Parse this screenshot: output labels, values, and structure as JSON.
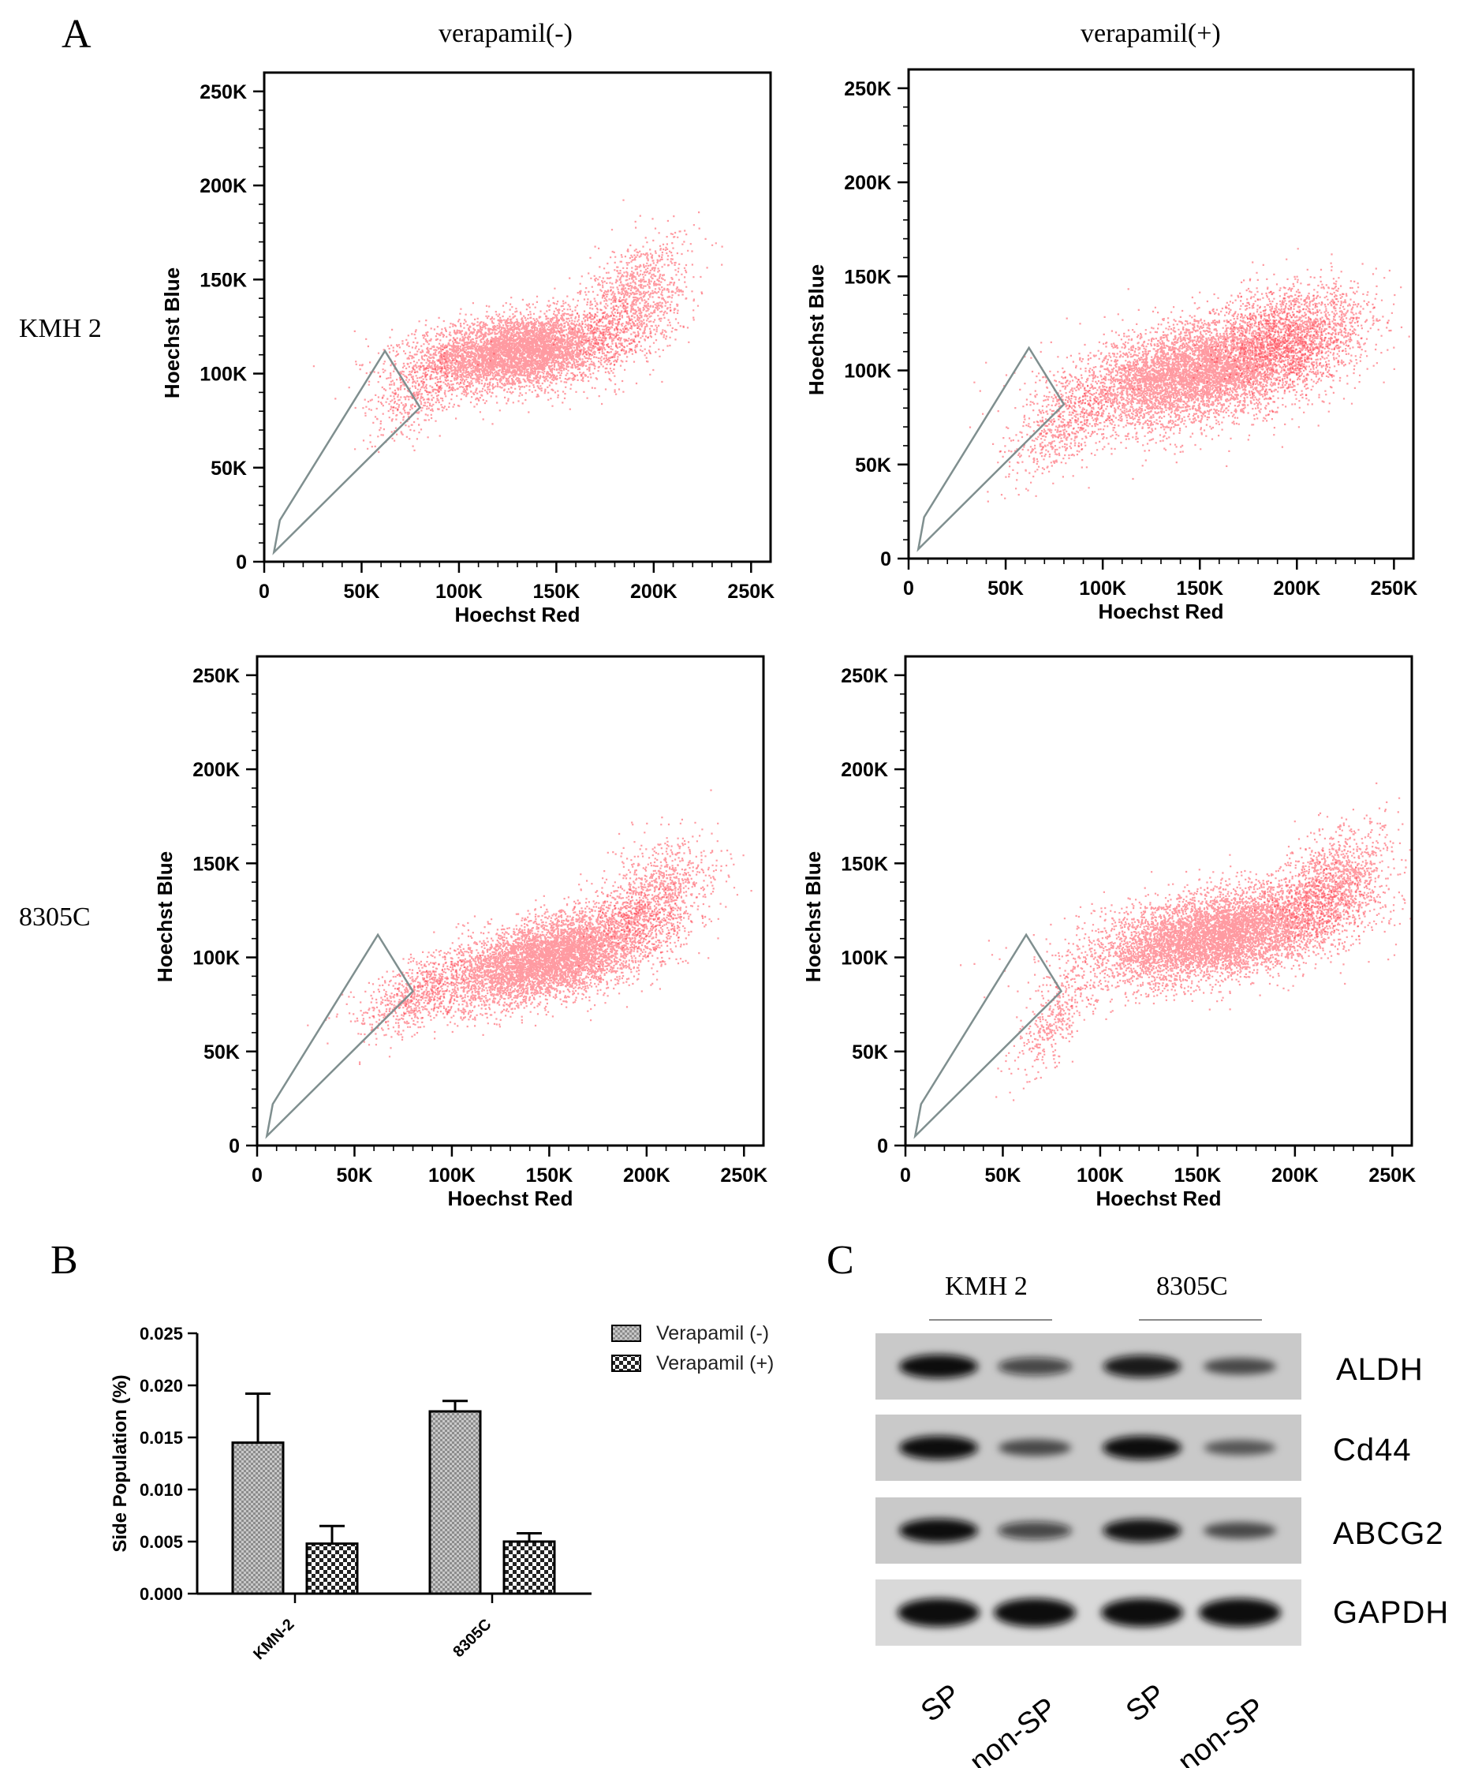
{
  "panels": {
    "A": "A",
    "B": "B",
    "C": "C"
  },
  "flow": {
    "column_headers": [
      "verapamil(-)",
      "verapamil(+)"
    ],
    "row_headers": [
      "KMH 2",
      "8305C"
    ],
    "colors": {
      "dots": "#ff1f2e",
      "gate": "#7f8f8f"
    },
    "chart_data": [
      {
        "type": "scatter",
        "row": "KMH 2",
        "column": "verapamil(-)",
        "xlabel": "Hoechst Red",
        "ylabel": "Hoechst Blue",
        "xlim": [
          0,
          260000
        ],
        "ylim": [
          0,
          260000
        ],
        "x_ticks": [
          "0",
          "50K",
          "100K",
          "150K",
          "200K",
          "250K"
        ],
        "y_ticks": [
          "0",
          "50K",
          "100K",
          "150K",
          "200K",
          "250K"
        ],
        "gate": [
          [
            5000,
            5000
          ],
          [
            8000,
            22000
          ],
          [
            62000,
            112000
          ],
          [
            80000,
            82000
          ]
        ],
        "clusters": [
          {
            "cx": 130000,
            "cy": 112000,
            "sx": 26000,
            "sy": 10000,
            "n": 5200,
            "rho": 0.3
          },
          {
            "cx": 190000,
            "cy": 140000,
            "sx": 14000,
            "sy": 16000,
            "n": 1100,
            "rho": 0.4
          },
          {
            "cx": 78000,
            "cy": 88000,
            "sx": 12000,
            "sy": 12000,
            "n": 380,
            "rho": 0.6
          }
        ]
      },
      {
        "type": "scatter",
        "row": "KMH 2",
        "column": "verapamil(+)",
        "xlabel": "Hoechst Red",
        "ylabel": "Hoechst Blue",
        "xlim": [
          0,
          260000
        ],
        "ylim": [
          0,
          260000
        ],
        "x_ticks": [
          "0",
          "50K",
          "100K",
          "150K",
          "200K",
          "250K"
        ],
        "y_ticks": [
          "0",
          "50K",
          "100K",
          "150K",
          "200K",
          "250K"
        ],
        "gate": [
          [
            5000,
            5000
          ],
          [
            8000,
            22000
          ],
          [
            62000,
            112000
          ],
          [
            80000,
            82000
          ]
        ],
        "clusters": [
          {
            "cx": 150000,
            "cy": 100000,
            "sx": 32000,
            "sy": 15000,
            "n": 6200,
            "rho": 0.45
          },
          {
            "cx": 200000,
            "cy": 120000,
            "sx": 18000,
            "sy": 14000,
            "n": 1500,
            "rho": 0.3
          },
          {
            "cx": 78000,
            "cy": 70000,
            "sx": 14000,
            "sy": 14000,
            "n": 500,
            "rho": 0.6
          }
        ]
      },
      {
        "type": "scatter",
        "row": "8305C",
        "column": "verapamil(-)",
        "xlabel": "Hoechst Red",
        "ylabel": "Hoechst Blue",
        "xlim": [
          0,
          260000
        ],
        "ylim": [
          0,
          260000
        ],
        "x_ticks": [
          "0",
          "50K",
          "100K",
          "150K",
          "200K",
          "250K"
        ],
        "y_ticks": [
          "0",
          "50K",
          "100K",
          "150K",
          "200K",
          "250K"
        ],
        "gate": [
          [
            5000,
            5000
          ],
          [
            8000,
            22000
          ],
          [
            62000,
            112000
          ],
          [
            80000,
            82000
          ]
        ],
        "clusters": [
          {
            "cx": 150000,
            "cy": 100000,
            "sx": 28000,
            "sy": 13000,
            "n": 5600,
            "rho": 0.55
          },
          {
            "cx": 205000,
            "cy": 135000,
            "sx": 14000,
            "sy": 14000,
            "n": 900,
            "rho": 0.4
          },
          {
            "cx": 80000,
            "cy": 80000,
            "sx": 14000,
            "sy": 11000,
            "n": 600,
            "rho": 0.6
          }
        ]
      },
      {
        "type": "scatter",
        "row": "8305C",
        "column": "verapamil(+)",
        "xlabel": "Hoechst Red",
        "ylabel": "Hoechst Blue",
        "xlim": [
          0,
          260000
        ],
        "ylim": [
          0,
          260000
        ],
        "x_ticks": [
          "0",
          "50K",
          "100K",
          "150K",
          "200K",
          "250K"
        ],
        "y_ticks": [
          "0",
          "50K",
          "100K",
          "150K",
          "200K",
          "250K"
        ],
        "gate": [
          [
            5000,
            5000
          ],
          [
            8000,
            22000
          ],
          [
            62000,
            112000
          ],
          [
            80000,
            82000
          ]
        ],
        "clusters": [
          {
            "cx": 160000,
            "cy": 112000,
            "sx": 32000,
            "sy": 13000,
            "n": 6000,
            "rho": 0.45
          },
          {
            "cx": 220000,
            "cy": 140000,
            "sx": 14000,
            "sy": 14000,
            "n": 1200,
            "rho": 0.3
          },
          {
            "cx": 75000,
            "cy": 65000,
            "sx": 10000,
            "sy": 14000,
            "n": 350,
            "rho": 0.7
          }
        ]
      }
    ]
  },
  "bar": {
    "chart_data": {
      "type": "bar",
      "categories": [
        "KMN-2",
        "8305C"
      ],
      "ylabel": "Side Population (%)",
      "ylim": [
        0,
        0.025
      ],
      "y_ticks": [
        "0.000",
        "0.005",
        "0.010",
        "0.015",
        "0.020",
        "0.025"
      ],
      "legend_position": "top-right",
      "series": [
        {
          "name": "Verapamil (-)",
          "values": [
            0.0145,
            0.0175
          ],
          "errors": [
            0.0047,
            0.001
          ]
        },
        {
          "name": "Verapamil (+)",
          "values": [
            0.0048,
            0.005
          ],
          "errors": [
            0.0017,
            0.0008
          ]
        }
      ]
    }
  },
  "blot": {
    "groups": [
      "KMH 2",
      "8305C"
    ],
    "proteins": [
      "ALDH",
      "Cd44",
      "ABCG2",
      "GAPDH"
    ],
    "lanes": [
      "SP",
      "non-SP",
      "SP",
      "non-SP"
    ],
    "band_intensity": [
      [
        1.0,
        0.55,
        0.9,
        0.45
      ],
      [
        1.0,
        0.45,
        1.0,
        0.35
      ],
      [
        1.0,
        0.55,
        0.95,
        0.45
      ],
      [
        1.0,
        1.0,
        1.0,
        1.0
      ]
    ]
  }
}
